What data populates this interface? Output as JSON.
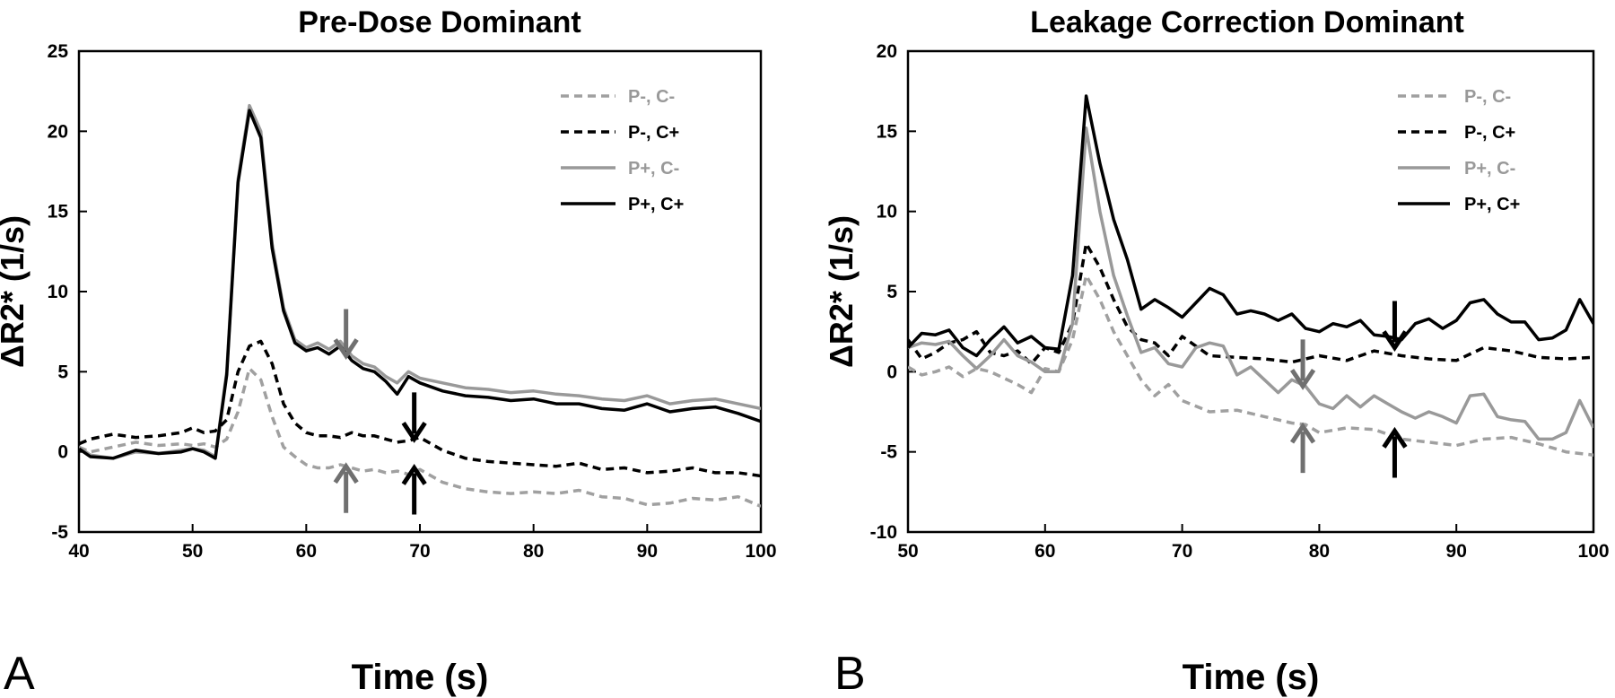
{
  "chart_data": [
    {
      "type": "line",
      "panel_label": "A",
      "title": "Pre-Dose Dominant",
      "xlabel": "Time (s)",
      "ylabel": "ΔR2* (1/s)",
      "xlim": [
        40,
        100
      ],
      "ylim": [
        -5,
        25
      ],
      "xticks": [
        40,
        50,
        60,
        70,
        80,
        90,
        100
      ],
      "yticks": [
        -5,
        0,
        5,
        10,
        15,
        20,
        25
      ],
      "legend_position": "top-right",
      "series": [
        {
          "name": "P-, C-",
          "color": "#a0a0a0",
          "dash": "dashed",
          "x": [
            40,
            41,
            43,
            45,
            47,
            49,
            50,
            51,
            52,
            53,
            54,
            55,
            56,
            57,
            58,
            59,
            60,
            61,
            62,
            63,
            64,
            65,
            66,
            67,
            68,
            69,
            70,
            72,
            74,
            76,
            78,
            80,
            82,
            84,
            86,
            88,
            90,
            92,
            94,
            96,
            98,
            100
          ],
          "y": [
            0.3,
            0.0,
            0.3,
            0.6,
            0.4,
            0.5,
            0.4,
            0.5,
            0.3,
            0.8,
            2.5,
            5.2,
            4.5,
            2.2,
            0.3,
            -0.3,
            -0.8,
            -1.0,
            -1.0,
            -0.8,
            -1.0,
            -1.2,
            -1.1,
            -1.3,
            -1.2,
            -1.4,
            -1.1,
            -1.9,
            -2.3,
            -2.5,
            -2.6,
            -2.5,
            -2.6,
            -2.4,
            -2.8,
            -2.9,
            -3.3,
            -3.2,
            -2.9,
            -3.0,
            -2.8,
            -3.4
          ]
        },
        {
          "name": "P-, C+",
          "color": "#000000",
          "dash": "dashed",
          "x": [
            40,
            41,
            43,
            45,
            47,
            49,
            50,
            51,
            52,
            53,
            54,
            55,
            56,
            57,
            58,
            59,
            60,
            61,
            62,
            63,
            64,
            65,
            66,
            67,
            68,
            69,
            70,
            72,
            74,
            76,
            78,
            80,
            82,
            84,
            86,
            88,
            90,
            92,
            94,
            96,
            98,
            100
          ],
          "y": [
            0.5,
            0.8,
            1.1,
            0.9,
            1.0,
            1.2,
            1.5,
            1.2,
            1.3,
            2.0,
            5.0,
            6.6,
            6.9,
            5.5,
            3.0,
            1.8,
            1.2,
            1.0,
            1.0,
            0.9,
            1.2,
            1.0,
            1.0,
            0.8,
            0.6,
            0.7,
            0.9,
            0.1,
            -0.4,
            -0.6,
            -0.7,
            -0.8,
            -0.9,
            -0.7,
            -1.1,
            -1.0,
            -1.3,
            -1.2,
            -1.0,
            -1.3,
            -1.3,
            -1.5
          ]
        },
        {
          "name": "P+, C-",
          "color": "#999999",
          "dash": "solid",
          "x": [
            40,
            41,
            43,
            45,
            47,
            49,
            50,
            51,
            52,
            53,
            54,
            55,
            56,
            57,
            58,
            59,
            60,
            61,
            62,
            63,
            64,
            65,
            66,
            67,
            68,
            69,
            70,
            72,
            74,
            76,
            78,
            80,
            82,
            84,
            86,
            88,
            90,
            92,
            94,
            96,
            98,
            100
          ],
          "y": [
            0.3,
            -0.2,
            -0.4,
            0.0,
            -0.1,
            0.1,
            0.2,
            0.1,
            -0.3,
            5.0,
            17.0,
            21.6,
            20.0,
            13.0,
            9.0,
            7.0,
            6.5,
            6.8,
            6.4,
            6.9,
            6.0,
            5.5,
            5.3,
            4.7,
            4.3,
            5.0,
            4.6,
            4.3,
            4.0,
            3.9,
            3.7,
            3.8,
            3.6,
            3.5,
            3.3,
            3.2,
            3.5,
            3.0,
            3.2,
            3.3,
            3.0,
            2.7
          ]
        },
        {
          "name": "P+, C+",
          "color": "#000000",
          "dash": "solid",
          "x": [
            40,
            41,
            43,
            45,
            47,
            49,
            50,
            51,
            52,
            53,
            54,
            55,
            56,
            57,
            58,
            59,
            60,
            61,
            62,
            63,
            64,
            65,
            66,
            67,
            68,
            69,
            70,
            72,
            74,
            76,
            78,
            80,
            82,
            84,
            86,
            88,
            90,
            92,
            94,
            96,
            98,
            100
          ],
          "y": [
            0.2,
            -0.3,
            -0.4,
            0.1,
            -0.1,
            0.0,
            0.2,
            0.0,
            -0.4,
            4.8,
            16.8,
            21.3,
            19.6,
            12.7,
            8.8,
            6.8,
            6.3,
            6.5,
            6.1,
            6.6,
            5.7,
            5.2,
            5.0,
            4.4,
            3.6,
            4.7,
            4.3,
            3.8,
            3.5,
            3.4,
            3.2,
            3.3,
            3.0,
            3.0,
            2.7,
            2.6,
            3.0,
            2.5,
            2.7,
            2.8,
            2.4,
            1.9
          ]
        }
      ],
      "annotations": [
        {
          "type": "arrow-down",
          "color": "#707070",
          "x": 63.5,
          "y": 6.0
        },
        {
          "type": "arrow-down",
          "color": "#000000",
          "x": 69.5,
          "y": 0.8
        },
        {
          "type": "arrow-up",
          "color": "#707070",
          "x": 63.5,
          "y": -0.9
        },
        {
          "type": "arrow-up",
          "color": "#000000",
          "x": 69.5,
          "y": -1.0
        }
      ]
    },
    {
      "type": "line",
      "panel_label": "B",
      "title": "Leakage Correction Dominant",
      "xlabel": "Time (s)",
      "ylabel": "ΔR2* (1/s)",
      "xlim": [
        50,
        100
      ],
      "ylim": [
        -10,
        20
      ],
      "xticks": [
        50,
        60,
        70,
        80,
        90,
        100
      ],
      "yticks": [
        -10,
        -5,
        0,
        5,
        10,
        15,
        20
      ],
      "legend_position": "top-right",
      "series": [
        {
          "name": "P-, C-",
          "color": "#a0a0a0",
          "dash": "dashed",
          "x": [
            50,
            51,
            52,
            53,
            54,
            55,
            56,
            57,
            58,
            59,
            60,
            61,
            62,
            63,
            64,
            65,
            66,
            67,
            68,
            69,
            70,
            72,
            74,
            76,
            78,
            79,
            80,
            82,
            84,
            86,
            88,
            90,
            92,
            94,
            96,
            98,
            100
          ],
          "y": [
            0.3,
            -0.2,
            0.0,
            0.3,
            -0.3,
            0.2,
            0.0,
            -0.4,
            -0.8,
            -1.3,
            0.2,
            0.0,
            2.0,
            6.0,
            4.5,
            2.5,
            1.0,
            -0.5,
            -1.5,
            -0.8,
            -1.8,
            -2.5,
            -2.4,
            -2.8,
            -3.2,
            -3.3,
            -3.8,
            -3.5,
            -3.6,
            -4.2,
            -4.4,
            -4.6,
            -4.2,
            -4.1,
            -4.5,
            -5.0,
            -5.2
          ]
        },
        {
          "name": "P-, C+",
          "color": "#000000",
          "dash": "dashed",
          "x": [
            50,
            51,
            52,
            53,
            54,
            55,
            56,
            57,
            58,
            59,
            60,
            61,
            62,
            63,
            64,
            65,
            66,
            67,
            68,
            69,
            70,
            72,
            74,
            76,
            78,
            80,
            82,
            84,
            86,
            88,
            90,
            92,
            94,
            96,
            98,
            100
          ],
          "y": [
            2.0,
            0.8,
            1.2,
            1.8,
            2.0,
            2.5,
            1.2,
            1.0,
            1.3,
            0.5,
            1.5,
            1.2,
            3.0,
            8.0,
            6.5,
            4.5,
            2.8,
            2.0,
            1.8,
            1.0,
            2.2,
            1.0,
            0.9,
            0.8,
            0.6,
            1.0,
            0.7,
            1.3,
            1.0,
            0.8,
            0.7,
            1.5,
            1.3,
            0.9,
            0.8,
            0.9
          ]
        },
        {
          "name": "P+, C-",
          "color": "#999999",
          "dash": "solid",
          "x": [
            50,
            51,
            52,
            53,
            54,
            55,
            56,
            57,
            58,
            59,
            60,
            61,
            62,
            63,
            64,
            65,
            66,
            67,
            68,
            69,
            70,
            71,
            72,
            73,
            74,
            75,
            76,
            77,
            78,
            79,
            80,
            81,
            82,
            83,
            84,
            85,
            86,
            87,
            88,
            89,
            90,
            91,
            92,
            93,
            94,
            95,
            96,
            97,
            98,
            99,
            100
          ],
          "y": [
            1.5,
            1.8,
            1.7,
            1.9,
            1.0,
            0.2,
            1.0,
            2.0,
            1.0,
            0.6,
            0.0,
            0.0,
            3.0,
            15.2,
            10.0,
            6.0,
            3.5,
            1.2,
            1.5,
            0.5,
            0.3,
            1.5,
            1.8,
            1.6,
            -0.2,
            0.3,
            -0.5,
            -1.3,
            -0.5,
            -0.9,
            -2.0,
            -2.3,
            -1.5,
            -2.2,
            -1.5,
            -2.0,
            -2.5,
            -2.9,
            -2.5,
            -2.8,
            -3.2,
            -1.5,
            -1.4,
            -2.8,
            -3.0,
            -3.1,
            -4.2,
            -4.2,
            -3.8,
            -1.8,
            -3.5
          ]
        },
        {
          "name": "P+, C+",
          "color": "#000000",
          "dash": "solid",
          "x": [
            50,
            51,
            52,
            53,
            54,
            55,
            56,
            57,
            58,
            59,
            60,
            61,
            62,
            63,
            64,
            65,
            66,
            67,
            68,
            69,
            70,
            71,
            72,
            73,
            74,
            75,
            76,
            77,
            78,
            79,
            80,
            81,
            82,
            83,
            84,
            85,
            86,
            87,
            88,
            89,
            90,
            91,
            92,
            93,
            94,
            95,
            96,
            97,
            98,
            99,
            100
          ],
          "y": [
            1.5,
            2.4,
            2.3,
            2.6,
            1.5,
            1.0,
            2.0,
            2.8,
            1.8,
            2.2,
            1.5,
            1.4,
            6.0,
            17.2,
            13.0,
            9.5,
            7.0,
            3.9,
            4.5,
            4.0,
            3.4,
            4.3,
            5.2,
            4.8,
            3.6,
            3.8,
            3.6,
            3.2,
            3.6,
            2.7,
            2.5,
            3.0,
            2.8,
            3.2,
            2.3,
            2.2,
            2.0,
            3.0,
            3.3,
            2.7,
            3.2,
            4.3,
            4.5,
            3.6,
            3.1,
            3.1,
            2.0,
            2.1,
            2.6,
            4.5,
            3.0
          ]
        }
      ],
      "annotations": [
        {
          "type": "arrow-down",
          "color": "#707070",
          "x": 78.8,
          "y": -0.9
        },
        {
          "type": "arrow-down",
          "color": "#000000",
          "x": 85.5,
          "y": 1.5
        },
        {
          "type": "arrow-up",
          "color": "#707070",
          "x": 78.8,
          "y": -3.4
        },
        {
          "type": "arrow-up",
          "color": "#000000",
          "x": 85.5,
          "y": -3.7
        }
      ]
    }
  ]
}
